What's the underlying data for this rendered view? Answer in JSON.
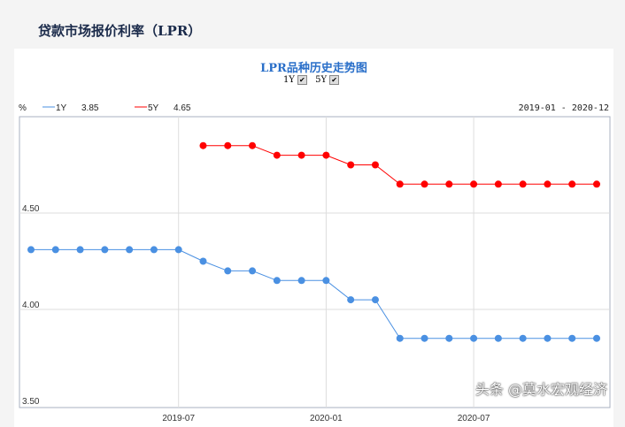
{
  "page_title": "贷款市场报价利率（LPR）",
  "watermark": "头条 @莫水宏观经济",
  "chart_data": {
    "type": "line",
    "title": "LPR品种历史走势图",
    "ylabel": "%",
    "date_range": "2019-01 - 2020-12",
    "toggles": [
      {
        "label": "1Y",
        "checked": true
      },
      {
        "label": "5Y",
        "checked": true
      }
    ],
    "x": [
      "2019-01",
      "2019-02",
      "2019-03",
      "2019-04",
      "2019-05",
      "2019-06",
      "2019-07",
      "2019-08",
      "2019-09",
      "2019-10",
      "2019-11",
      "2019-12",
      "2020-01",
      "2020-02",
      "2020-03",
      "2020-04",
      "2020-05",
      "2020-06",
      "2020-07",
      "2020-08",
      "2020-09",
      "2020-10",
      "2020-11",
      "2020-12"
    ],
    "x_tick_labels": [
      "2019-07",
      "2020-01",
      "2020-07"
    ],
    "y_tick_labels": [
      "3.50",
      "4.00",
      "4.50"
    ],
    "ylim": [
      3.5,
      5.0
    ],
    "grid": true,
    "series": [
      {
        "name": "1Y",
        "latest": "3.85",
        "color": "#4a90e2",
        "values": [
          4.31,
          4.31,
          4.31,
          4.31,
          4.31,
          4.31,
          4.31,
          4.25,
          4.2,
          4.2,
          4.15,
          4.15,
          4.15,
          4.05,
          4.05,
          3.85,
          3.85,
          3.85,
          3.85,
          3.85,
          3.85,
          3.85,
          3.85,
          3.85
        ]
      },
      {
        "name": "5Y",
        "latest": "4.65",
        "color": "#ff0000",
        "values": [
          null,
          null,
          null,
          null,
          null,
          null,
          null,
          4.85,
          4.85,
          4.85,
          4.8,
          4.8,
          4.8,
          4.75,
          4.75,
          4.65,
          4.65,
          4.65,
          4.65,
          4.65,
          4.65,
          4.65,
          4.65,
          4.65
        ]
      }
    ]
  }
}
